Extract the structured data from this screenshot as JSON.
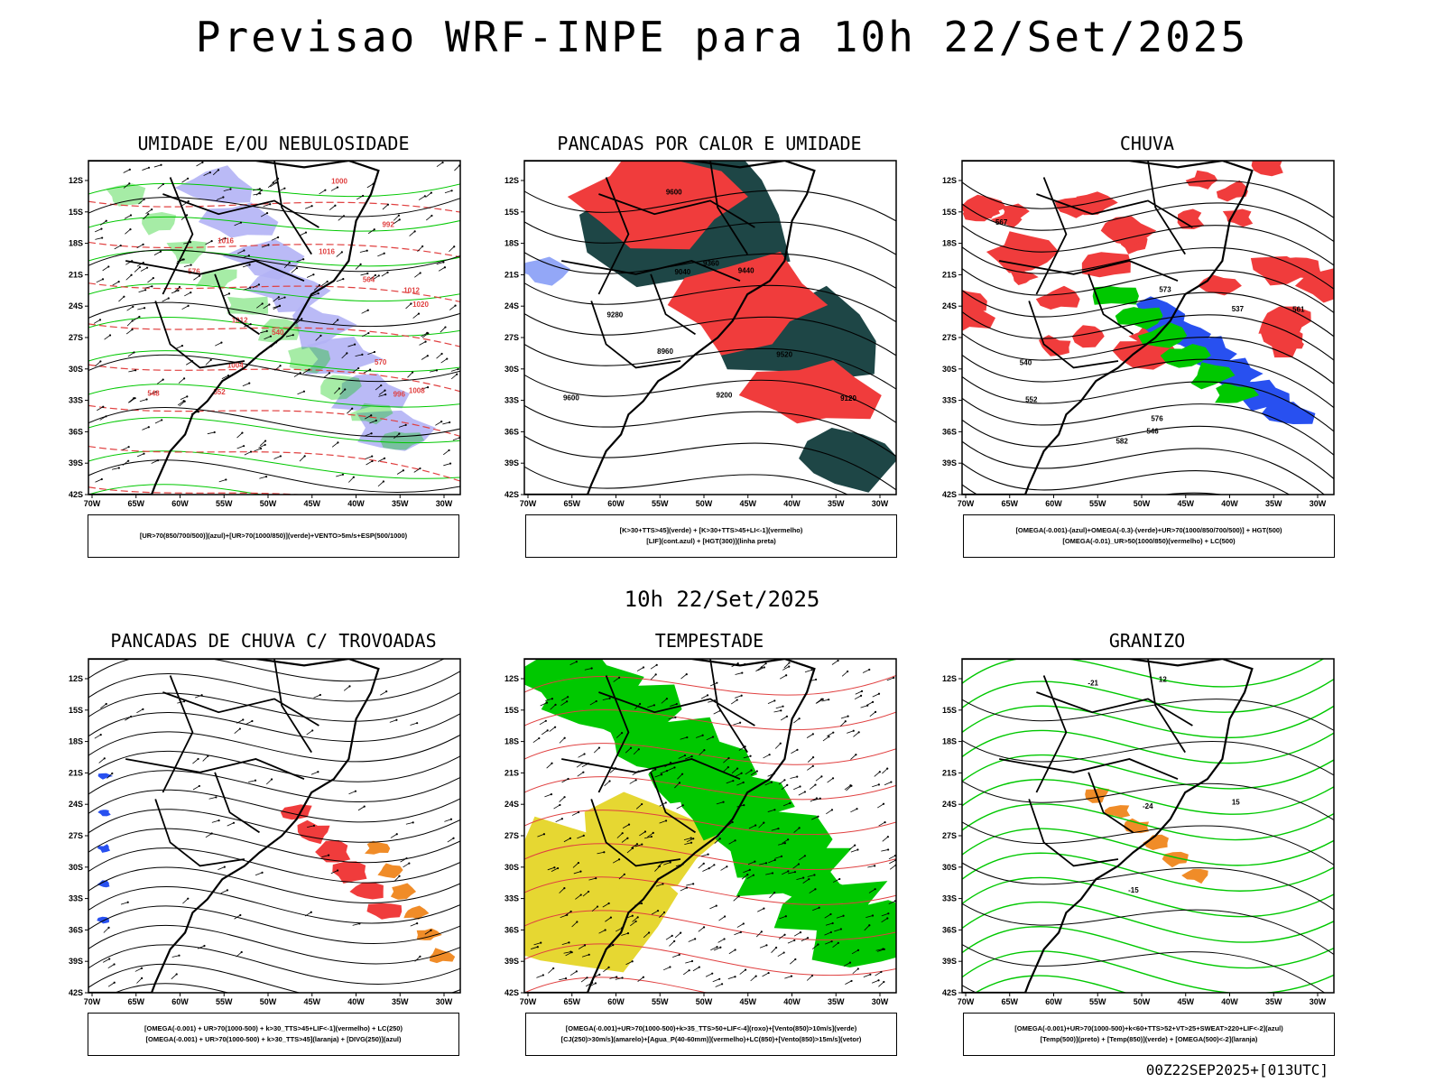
{
  "title": "Previsao WRF-INPE  para 10h 22/Set/2025",
  "middle_title": "10h 22/Set/2025",
  "footer": "00Z22SEP2025+[013UTC]",
  "axes": {
    "lat_labels": [
      "12S",
      "15S",
      "18S",
      "21S",
      "24S",
      "27S",
      "30S",
      "33S",
      "36S",
      "39S",
      "42S"
    ],
    "lon_labels": [
      "70W",
      "65W",
      "60W",
      "55W",
      "50W",
      "45W",
      "40W",
      "35W",
      "30W"
    ]
  },
  "colors": {
    "blue_light": "#b3b3f5",
    "green": "#00c800",
    "red": "#f03c3c",
    "orange": "#f08c28",
    "yellow": "#e6d732",
    "dark_teal": "#1e4646",
    "blue": "#2850f0"
  },
  "panels": [
    {
      "title": "UMIDADE E/OU NEBULOSIDADE",
      "legend": [
        "[UR>70(850/700/500)](azul)+[UR>70(1000/850)](verde)+VENTO>5m/s+ESP(500/1000)"
      ],
      "contour_labels": [
        "1016",
        "1012",
        "1016",
        "1020",
        "1012",
        "1008",
        "1004",
        "1000",
        "996",
        "992",
        "576",
        "570",
        "564",
        "552",
        "548",
        "540"
      ]
    },
    {
      "title": "PANCADAS POR CALOR E UMIDADE",
      "legend": [
        "[K>30+TTS>45](verde) + [K>30+TTS>45+LI<-1](vermelho)",
        "[LIF](cont.azul) + [HGT(300)](linha preta)"
      ],
      "contour_labels": [
        "9600",
        "9520",
        "9440",
        "9360",
        "9280",
        "9200",
        "9120",
        "9040",
        "8960",
        "9600"
      ]
    },
    {
      "title": "CHUVA",
      "legend": [
        "[OMEGA(-0.001)-(azul)+OMEGA(-0.3)-(verde)+UR>70(1000/850/700/500)] + HGT(500)",
        "[OMEGA(-0.01)_UR>50(1000/850)(vermelho) + LC(500)"
      ],
      "contour_labels": [
        "582",
        "576",
        "573",
        "567",
        "561",
        "552",
        "546",
        "540",
        "537"
      ]
    },
    {
      "title": "PANCADAS DE CHUVA C/ TROVOADAS",
      "legend": [
        "[OMEGA(-0.001) + UR>70(1000-500) + k>30_TTS>45+LIF<-1](vermelho) + LC(250)",
        "[OMEGA(-0.001) + UR>70(1000-500) + k>30_TTS>45](laranja) + [DIVG(250)](azul)"
      ],
      "contour_labels": []
    },
    {
      "title": "TEMPESTADE",
      "legend": [
        "[OMEGA(-0.001)+UR>70(1000-500)+k>35_TTS>50+LIF<-4](roxo)+[Vento(850)>10m/s](verde)",
        "[CJ(250)>30m/s](amarelo)+[Agua_P(40-60mm)](vermelho)+LC(850)+[Vento(850)>15m/s](vetor)"
      ],
      "contour_labels": []
    },
    {
      "title": "GRANIZO",
      "legend": [
        "[OMEGA(-0.001)+UR>70(1000-500)+k<60+TTS>52+VT>25+SWEAT>220+LIF<-2](azul)",
        "[Temp(500)](preto) + [Temp(850)](verde) + [OMEGA(500)<-2](laranja)"
      ],
      "contour_labels": [
        "-15",
        "-21",
        "-24",
        "12",
        "15"
      ]
    }
  ]
}
